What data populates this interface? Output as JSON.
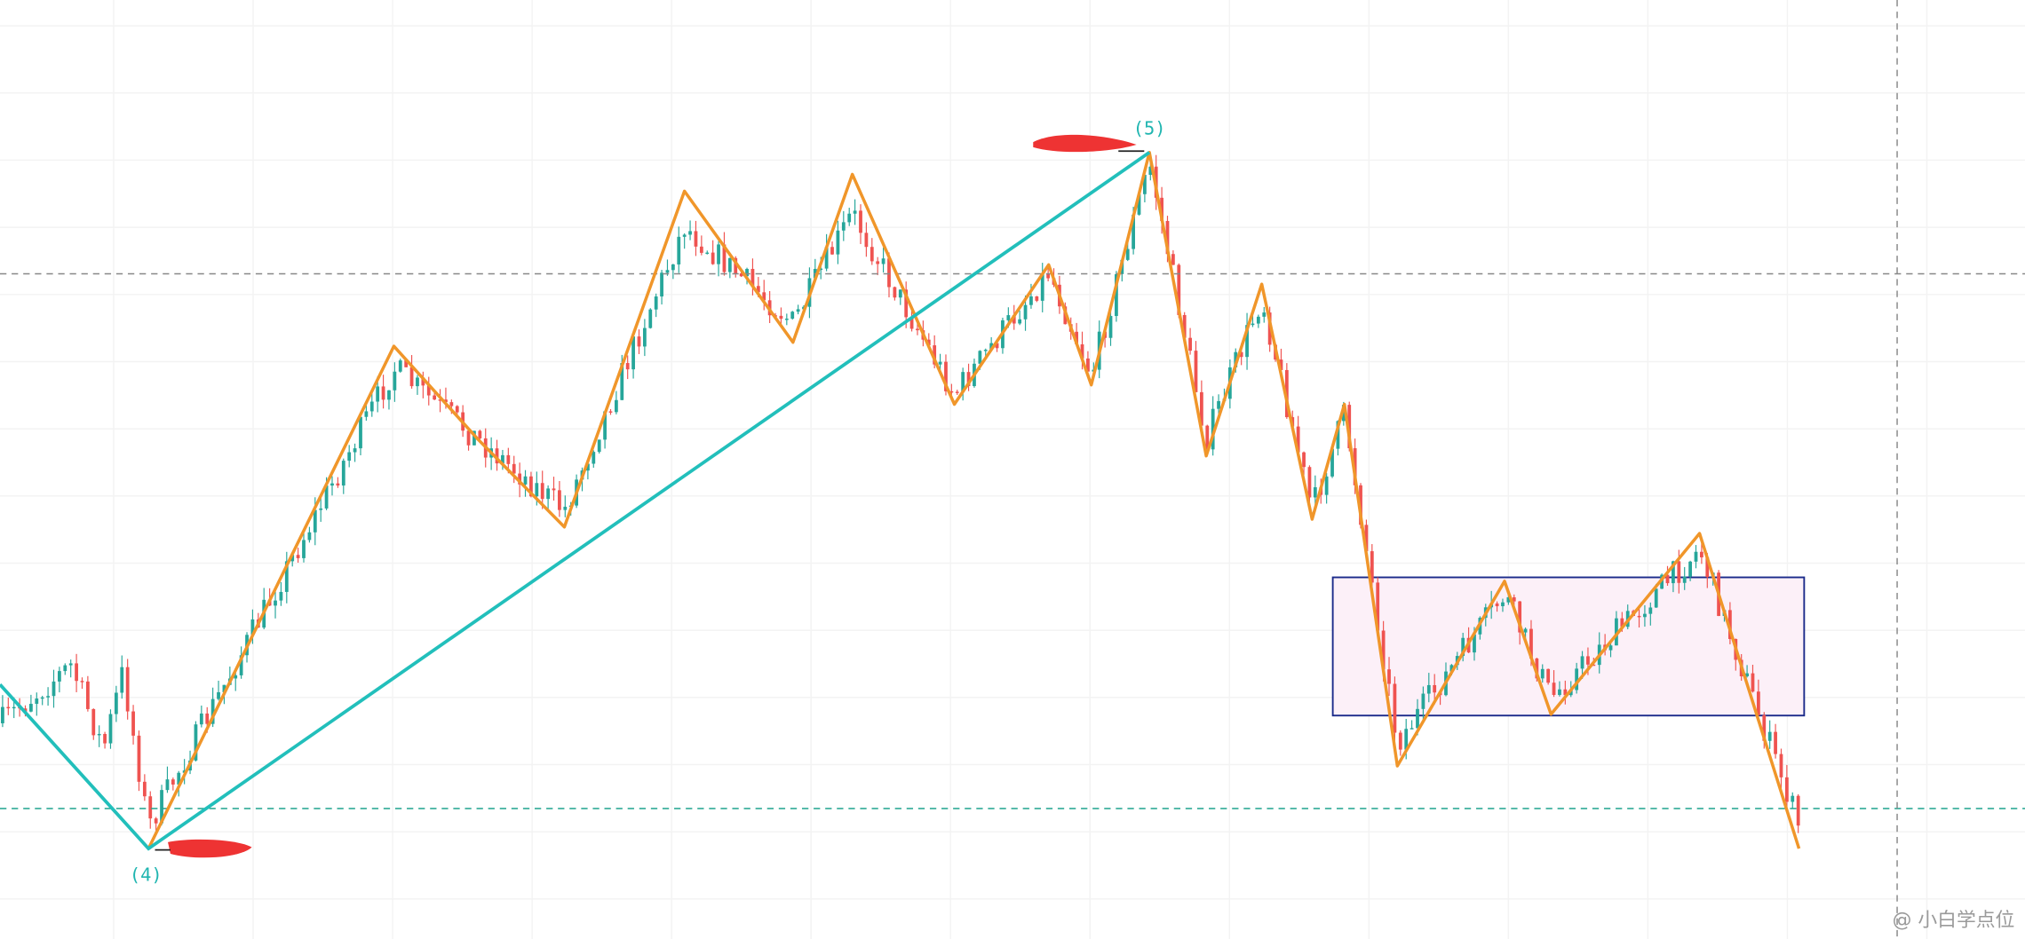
{
  "labels": {
    "wave_4": "(4)",
    "wave_5": "(5)"
  },
  "watermark": "@ 小白学点位"
}
